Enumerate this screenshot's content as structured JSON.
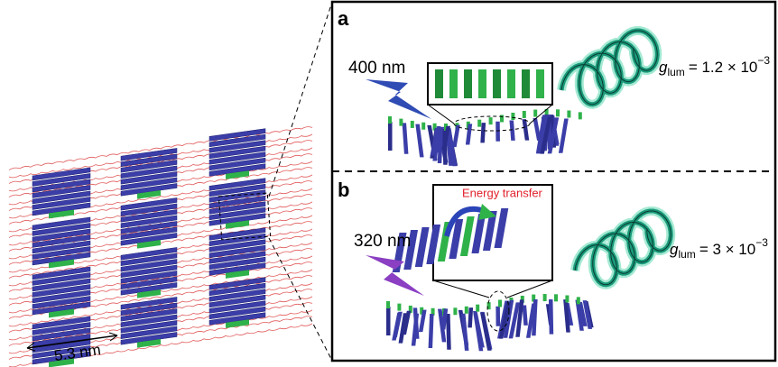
{
  "left": {
    "scale": "5.3 nm"
  },
  "panel_a": {
    "label": "a",
    "excitation": "400 nm",
    "glum": {
      "symbol": "g",
      "subscript": "lum",
      "value": "= 1.2 × 10",
      "exponent": "−3"
    }
  },
  "panel_b": {
    "label": "b",
    "excitation": "320 nm",
    "transfer": "Energy transfer",
    "glum": {
      "symbol": "g",
      "subscript": "lum",
      "value": "= 3 × 10",
      "exponent": "−3"
    }
  }
}
